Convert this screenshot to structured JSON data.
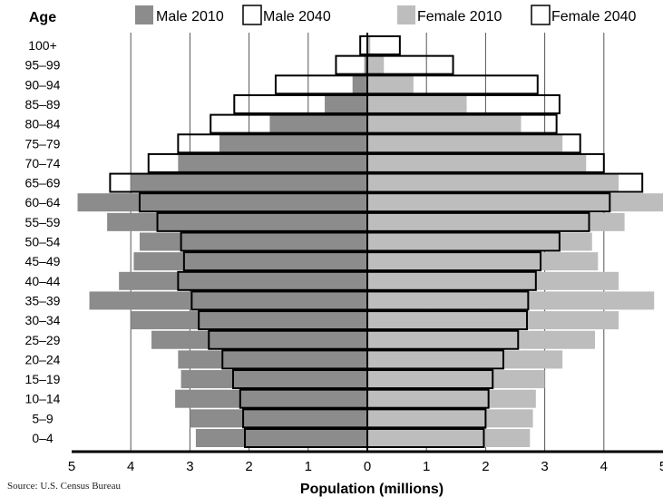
{
  "chart_data": {
    "type": "bar",
    "subtype": "population-pyramid",
    "title": "",
    "xlabel": "Population (millions)",
    "ylabel": "Age",
    "xlim": [
      -5,
      5
    ],
    "x_ticks": [
      {
        "value": -5,
        "label": "5"
      },
      {
        "value": -4,
        "label": "4"
      },
      {
        "value": -3,
        "label": "3"
      },
      {
        "value": -2,
        "label": "2"
      },
      {
        "value": -1,
        "label": "1"
      },
      {
        "value": 0,
        "label": "0"
      },
      {
        "value": 1,
        "label": "1"
      },
      {
        "value": 2,
        "label": "2"
      },
      {
        "value": 3,
        "label": "3"
      },
      {
        "value": 4,
        "label": "4"
      },
      {
        "value": 5,
        "label": "5"
      }
    ],
    "grid": true,
    "legend_position": "top",
    "categories": [
      "0–4",
      "5–9",
      "10–14",
      "15–19",
      "20–24",
      "25–29",
      "30–34",
      "35–39",
      "40–44",
      "45–49",
      "50–54",
      "55–59",
      "60–64",
      "65–69",
      "70–74",
      "75–79",
      "80–84",
      "85–89",
      "90–94",
      "95–99",
      "100+"
    ],
    "series": [
      {
        "name": "Male 2010",
        "side": "left",
        "color": "#8c8c8c",
        "values": [
          2.9,
          3.0,
          3.25,
          3.15,
          3.2,
          3.65,
          4.0,
          4.7,
          4.2,
          3.95,
          3.85,
          4.4,
          4.9,
          4.0,
          3.2,
          2.5,
          1.65,
          0.72,
          0.25,
          0.05,
          0.01
        ]
      },
      {
        "name": "Male 2040",
        "side": "left",
        "color": "#ffffff",
        "values": [
          2.07,
          2.1,
          2.15,
          2.27,
          2.45,
          2.68,
          2.85,
          2.97,
          3.2,
          3.1,
          3.15,
          3.55,
          3.85,
          4.35,
          3.7,
          3.2,
          2.65,
          2.25,
          1.55,
          0.53,
          0.12
        ]
      },
      {
        "name": "Female 2010",
        "side": "right",
        "color": "#bdbdbd",
        "values": [
          2.75,
          2.8,
          2.85,
          3.0,
          3.3,
          3.85,
          4.25,
          4.85,
          4.25,
          3.9,
          3.8,
          4.35,
          5.0,
          4.25,
          3.7,
          3.3,
          2.6,
          1.68,
          0.78,
          0.28,
          0.05
        ]
      },
      {
        "name": "Female 2040",
        "side": "right",
        "color": "#ffffff",
        "values": [
          1.97,
          2.0,
          2.05,
          2.12,
          2.3,
          2.55,
          2.7,
          2.72,
          2.85,
          2.93,
          3.25,
          3.75,
          4.1,
          4.65,
          4.0,
          3.6,
          3.2,
          3.25,
          2.88,
          1.45,
          0.55
        ]
      }
    ]
  },
  "source_note": "Source: U.S. Census Bureau"
}
